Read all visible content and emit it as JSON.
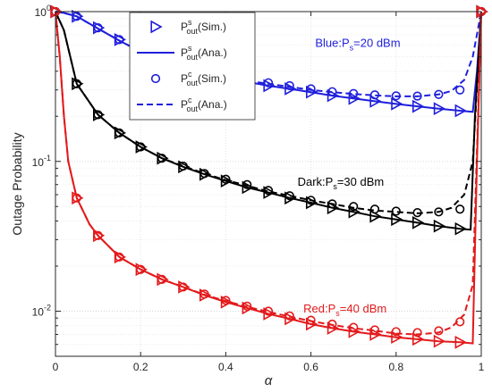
{
  "chart_data": {
    "type": "line",
    "xlabel": "α",
    "ylabel": "Outage Probability",
    "xlim": [
      0,
      1
    ],
    "ylim": [
      0.005,
      1
    ],
    "yscale": "log",
    "grid": true,
    "legend_position": "top-center",
    "x_ticks": [
      "0",
      "0.2",
      "0.4",
      "0.6",
      "0.8",
      "1"
    ],
    "y_ticks": [
      {
        "base": "10",
        "exp": "-2",
        "value": 0.01
      },
      {
        "base": "10",
        "exp": "-1",
        "value": 0.1
      },
      {
        "base": "10",
        "exp": "0",
        "value": 1
      }
    ],
    "legend": [
      {
        "sym": "P",
        "sup": "s",
        "sub": "out",
        "suffix": "(Sim.)",
        "marker": "triangle",
        "line": "none"
      },
      {
        "sym": "P",
        "sup": "s",
        "sub": "out",
        "suffix": "(Ana.)",
        "marker": "none",
        "line": "solid"
      },
      {
        "sym": "P",
        "sup": "c",
        "sub": "out",
        "suffix": "(Sim.)",
        "marker": "circle",
        "line": "none"
      },
      {
        "sym": "P",
        "sup": "c",
        "sub": "out",
        "suffix": "(Ana.)",
        "marker": "none",
        "line": "dashed"
      }
    ],
    "annotations": [
      {
        "pre": "Blue:P",
        "sub": "s",
        "post": "=20 dBm",
        "color": "#1f1fdc",
        "x": 0.71,
        "y": 0.58
      },
      {
        "pre": "Dark:P",
        "sub": "s",
        "post": "=30 dBm",
        "color": "#000000",
        "x": 0.67,
        "y": 0.069
      },
      {
        "pre": "Red:P",
        "sub": "s",
        "post": "=40 dBm",
        "color": "#e31a1c",
        "x": 0.68,
        "y": 0.0098
      }
    ],
    "sim_x": [
      0,
      0.05,
      0.1,
      0.15,
      0.2,
      0.25,
      0.3,
      0.35,
      0.4,
      0.45,
      0.5,
      0.55,
      0.6,
      0.65,
      0.7,
      0.75,
      0.8,
      0.85,
      0.9,
      0.95,
      1.0
    ],
    "series": [
      {
        "color": "#1f1fdc",
        "ana_s": [
          [
            0,
            1
          ],
          [
            0.02,
            0.98
          ],
          [
            0.05,
            0.93
          ],
          [
            0.1,
            0.77
          ],
          [
            0.15,
            0.64
          ],
          [
            0.2,
            0.54
          ],
          [
            0.25,
            0.47
          ],
          [
            0.3,
            0.42
          ],
          [
            0.35,
            0.385
          ],
          [
            0.4,
            0.36
          ],
          [
            0.45,
            0.34
          ],
          [
            0.5,
            0.32
          ],
          [
            0.55,
            0.305
          ],
          [
            0.6,
            0.29
          ],
          [
            0.65,
            0.275
          ],
          [
            0.7,
            0.263
          ],
          [
            0.75,
            0.252
          ],
          [
            0.8,
            0.242
          ],
          [
            0.85,
            0.233
          ],
          [
            0.9,
            0.225
          ],
          [
            0.95,
            0.218
          ],
          [
            0.98,
            0.214
          ],
          [
            0.99,
            0.4
          ],
          [
            1.0,
            1
          ]
        ],
        "ana_c": [
          [
            0,
            1
          ],
          [
            0.02,
            0.98
          ],
          [
            0.05,
            0.93
          ],
          [
            0.1,
            0.77
          ],
          [
            0.15,
            0.64
          ],
          [
            0.2,
            0.54
          ],
          [
            0.25,
            0.47
          ],
          [
            0.3,
            0.42
          ],
          [
            0.35,
            0.39
          ],
          [
            0.4,
            0.365
          ],
          [
            0.45,
            0.345
          ],
          [
            0.5,
            0.33
          ],
          [
            0.55,
            0.315
          ],
          [
            0.6,
            0.3
          ],
          [
            0.65,
            0.29
          ],
          [
            0.7,
            0.282
          ],
          [
            0.75,
            0.276
          ],
          [
            0.8,
            0.272
          ],
          [
            0.85,
            0.272
          ],
          [
            0.9,
            0.28
          ],
          [
            0.93,
            0.295
          ],
          [
            0.96,
            0.35
          ],
          [
            0.98,
            0.5
          ],
          [
            1.0,
            1
          ]
        ],
        "sim_s": [
          1,
          0.93,
          0.78,
          0.65,
          0.55,
          0.47,
          0.42,
          0.385,
          0.36,
          0.34,
          0.32,
          0.305,
          0.29,
          0.275,
          0.263,
          0.252,
          0.242,
          0.233,
          0.225,
          0.218,
          1
        ],
        "sim_c": [
          1,
          0.93,
          0.78,
          0.65,
          0.55,
          0.47,
          0.42,
          0.39,
          0.37,
          0.35,
          0.335,
          0.32,
          0.305,
          0.292,
          0.284,
          0.278,
          0.274,
          0.273,
          0.28,
          0.3,
          1
        ]
      },
      {
        "color": "#000000",
        "ana_s": [
          [
            0,
            1
          ],
          [
            0.02,
            0.75
          ],
          [
            0.05,
            0.33
          ],
          [
            0.1,
            0.205
          ],
          [
            0.15,
            0.155
          ],
          [
            0.2,
            0.125
          ],
          [
            0.25,
            0.105
          ],
          [
            0.3,
            0.092
          ],
          [
            0.35,
            0.082
          ],
          [
            0.4,
            0.074
          ],
          [
            0.45,
            0.067
          ],
          [
            0.5,
            0.062
          ],
          [
            0.55,
            0.057
          ],
          [
            0.6,
            0.053
          ],
          [
            0.65,
            0.049
          ],
          [
            0.7,
            0.046
          ],
          [
            0.75,
            0.043
          ],
          [
            0.8,
            0.041
          ],
          [
            0.85,
            0.039
          ],
          [
            0.9,
            0.037
          ],
          [
            0.95,
            0.0355
          ],
          [
            0.975,
            0.035
          ],
          [
            0.985,
            0.2
          ],
          [
            1.0,
            1
          ]
        ],
        "ana_c": [
          [
            0,
            1
          ],
          [
            0.02,
            0.75
          ],
          [
            0.05,
            0.33
          ],
          [
            0.1,
            0.205
          ],
          [
            0.15,
            0.155
          ],
          [
            0.2,
            0.125
          ],
          [
            0.25,
            0.105
          ],
          [
            0.3,
            0.093
          ],
          [
            0.35,
            0.083
          ],
          [
            0.4,
            0.075
          ],
          [
            0.45,
            0.069
          ],
          [
            0.5,
            0.063
          ],
          [
            0.55,
            0.059
          ],
          [
            0.6,
            0.055
          ],
          [
            0.65,
            0.052
          ],
          [
            0.7,
            0.049
          ],
          [
            0.75,
            0.047
          ],
          [
            0.8,
            0.046
          ],
          [
            0.85,
            0.045
          ],
          [
            0.9,
            0.046
          ],
          [
            0.93,
            0.049
          ],
          [
            0.96,
            0.06
          ],
          [
            0.98,
            0.1
          ],
          [
            1.0,
            1
          ]
        ],
        "sim_s": [
          1,
          0.33,
          0.205,
          0.155,
          0.125,
          0.105,
          0.092,
          0.082,
          0.074,
          0.067,
          0.062,
          0.057,
          0.053,
          0.049,
          0.046,
          0.043,
          0.041,
          0.039,
          0.037,
          0.0355,
          1
        ],
        "sim_c": [
          1,
          0.33,
          0.205,
          0.155,
          0.125,
          0.105,
          0.093,
          0.083,
          0.076,
          0.07,
          0.064,
          0.059,
          0.055,
          0.052,
          0.05,
          0.048,
          0.0465,
          0.0455,
          0.046,
          0.048,
          1
        ]
      },
      {
        "color": "#e31a1c",
        "ana_s": [
          [
            0,
            1
          ],
          [
            0.01,
            0.5
          ],
          [
            0.02,
            0.2
          ],
          [
            0.03,
            0.1
          ],
          [
            0.05,
            0.057
          ],
          [
            0.08,
            0.038
          ],
          [
            0.1,
            0.032
          ],
          [
            0.15,
            0.023
          ],
          [
            0.2,
            0.019
          ],
          [
            0.25,
            0.0163
          ],
          [
            0.3,
            0.0145
          ],
          [
            0.35,
            0.0128
          ],
          [
            0.4,
            0.0115
          ],
          [
            0.45,
            0.0105
          ],
          [
            0.5,
            0.0096
          ],
          [
            0.55,
            0.0089
          ],
          [
            0.6,
            0.0082
          ],
          [
            0.65,
            0.0077
          ],
          [
            0.7,
            0.0073
          ],
          [
            0.75,
            0.007
          ],
          [
            0.8,
            0.0067
          ],
          [
            0.85,
            0.0065
          ],
          [
            0.9,
            0.0063
          ],
          [
            0.95,
            0.0062
          ],
          [
            0.98,
            0.0061
          ],
          [
            0.99,
            0.1
          ],
          [
            1.0,
            1
          ]
        ],
        "ana_c": [
          [
            0,
            1
          ],
          [
            0.01,
            0.5
          ],
          [
            0.02,
            0.2
          ],
          [
            0.03,
            0.1
          ],
          [
            0.05,
            0.057
          ],
          [
            0.08,
            0.038
          ],
          [
            0.1,
            0.032
          ],
          [
            0.15,
            0.023
          ],
          [
            0.2,
            0.019
          ],
          [
            0.25,
            0.0163
          ],
          [
            0.3,
            0.0145
          ],
          [
            0.35,
            0.0129
          ],
          [
            0.4,
            0.0117
          ],
          [
            0.45,
            0.0107
          ],
          [
            0.5,
            0.0099
          ],
          [
            0.55,
            0.0092
          ],
          [
            0.6,
            0.0086
          ],
          [
            0.65,
            0.0081
          ],
          [
            0.7,
            0.0077
          ],
          [
            0.75,
            0.0074
          ],
          [
            0.8,
            0.0071
          ],
          [
            0.85,
            0.007
          ],
          [
            0.9,
            0.0072
          ],
          [
            0.93,
            0.0078
          ],
          [
            0.96,
            0.0095
          ],
          [
            0.98,
            0.015
          ],
          [
            1.0,
            1
          ]
        ],
        "sim_s": [
          1,
          0.057,
          0.032,
          0.023,
          0.019,
          0.0163,
          0.0145,
          0.0128,
          0.0115,
          0.0105,
          0.0096,
          0.0089,
          0.0082,
          0.0077,
          0.0073,
          0.007,
          0.0067,
          0.0065,
          0.0063,
          0.0062,
          1
        ],
        "sim_c": [
          1,
          0.057,
          0.032,
          0.023,
          0.019,
          0.0163,
          0.0145,
          0.013,
          0.0118,
          0.0108,
          0.01,
          0.0093,
          0.0087,
          0.0082,
          0.0078,
          0.0075,
          0.0073,
          0.0072,
          0.0074,
          0.0085,
          1
        ]
      }
    ]
  }
}
